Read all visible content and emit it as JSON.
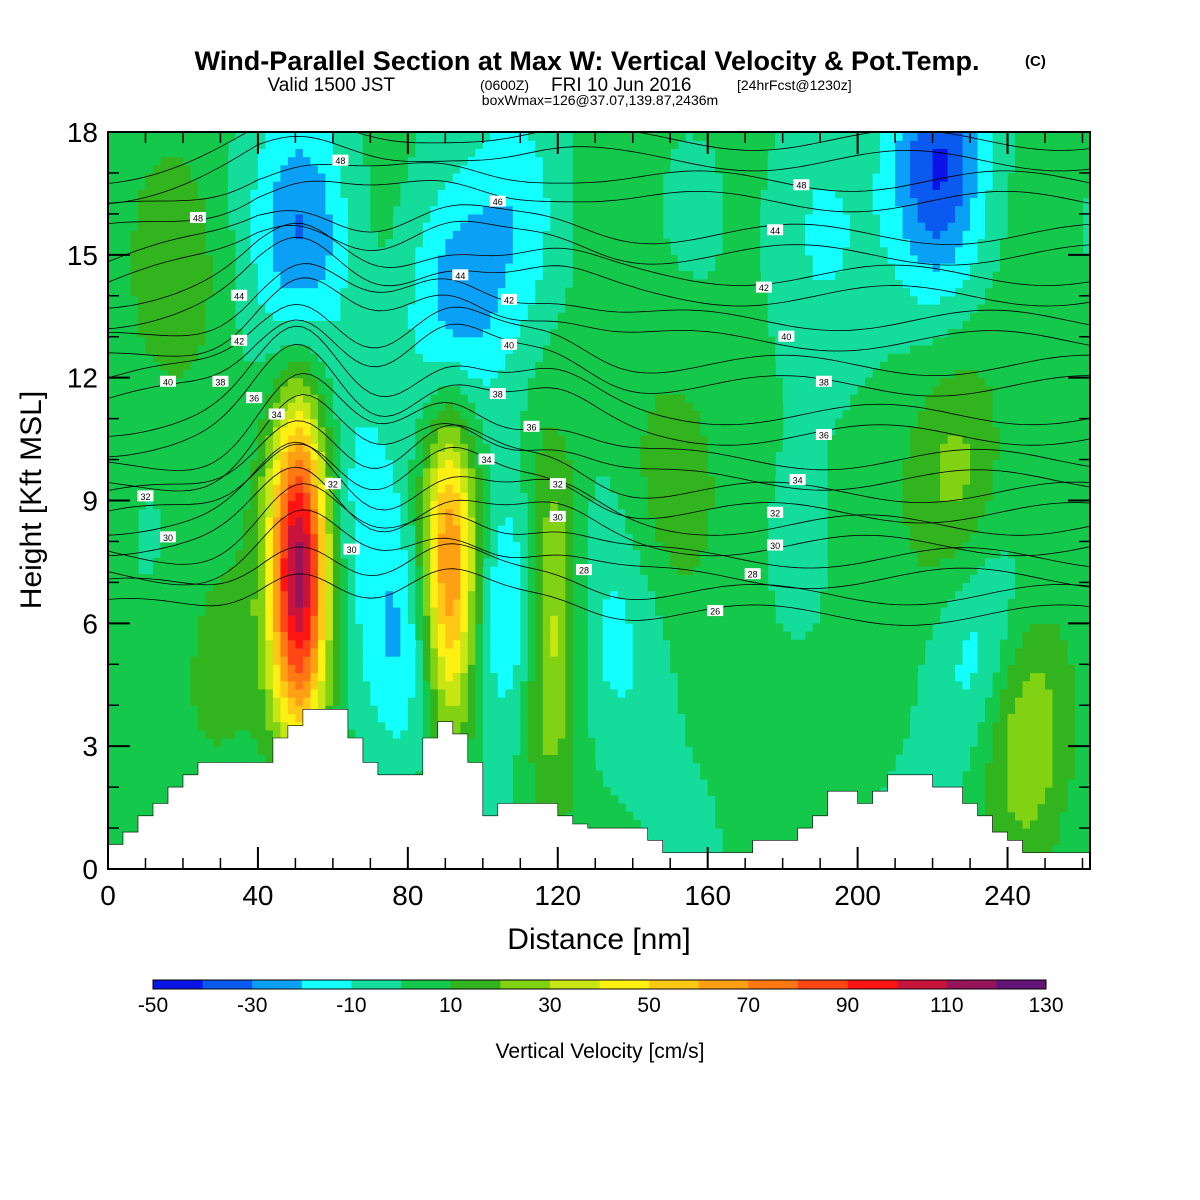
{
  "title": {
    "main": "Wind-Parallel Section at Max W: Vertical Velocity & Pot.Temp.",
    "copyright": "(C)",
    "valid_prefix": "Valid 1500 JST",
    "valid_utc": "(0600Z)",
    "valid_date": "FRI 10 Jun 2016",
    "forecast": "[24hrFcst@1230z]",
    "box": "boxWmax=126@37.07,139.87,2436m"
  },
  "chart_data": {
    "type": "heatmap",
    "xlabel": "Distance [nm]",
    "ylabel": "Height [Kft MSL]",
    "xlim": [
      0,
      262
    ],
    "ylim": [
      0,
      18
    ],
    "x_ticks": [
      0,
      40,
      80,
      120,
      160,
      200,
      240
    ],
    "y_ticks": [
      0,
      3,
      6,
      9,
      12,
      15,
      18
    ],
    "x_tick_labels": [
      "0",
      "40",
      "80",
      "120",
      "160",
      "200",
      "240"
    ],
    "y_tick_labels": [
      "0",
      "3",
      "6",
      "9",
      "12",
      "15",
      "18"
    ],
    "field": "Vertical Velocity [cm/s]",
    "colorbar": {
      "label": "Vertical Velocity [cm/s]",
      "levels": [
        -50,
        -40,
        -30,
        -20,
        -10,
        0,
        10,
        20,
        30,
        40,
        50,
        60,
        70,
        80,
        90,
        100,
        110,
        120,
        130
      ],
      "tick_labels": [
        "-50",
        "-30",
        "-10",
        "10",
        "30",
        "50",
        "70",
        "90",
        "110",
        "130"
      ],
      "colors": [
        "#0a14e6",
        "#0a5af0",
        "#0aa0f5",
        "#14ffff",
        "#14dc9a",
        "#14c84b",
        "#32b41e",
        "#82d214",
        "#c8e614",
        "#fff014",
        "#ffc814",
        "#ffa014",
        "#ff7814",
        "#ff4614",
        "#ff1414",
        "#c8143c",
        "#96145a",
        "#641478"
      ]
    },
    "background_w": 2,
    "updrafts": [
      {
        "x": 51,
        "z": 7.3,
        "peak_w": 112
      },
      {
        "x": 91,
        "z": 7.2,
        "peak_w": 76
      },
      {
        "x": 118,
        "z": 6.2,
        "peak_w": 48
      },
      {
        "x": 243,
        "z": 3.6,
        "peak_w": 36
      },
      {
        "x": 227,
        "z": 9.5,
        "peak_w": 22
      },
      {
        "x": 150,
        "z": 9.5,
        "peak_w": 13
      },
      {
        "x": 18,
        "z": 14.5,
        "peak_w": 14
      },
      {
        "x": 30,
        "z": 5.0,
        "peak_w": 12
      }
    ],
    "downdrafts": [
      {
        "x": 52,
        "z": 15.5,
        "peak_w": -32
      },
      {
        "x": 92,
        "z": 13.5,
        "peak_w": -28
      },
      {
        "x": 110,
        "z": 16.0,
        "peak_w": -18
      },
      {
        "x": 222,
        "z": 17.2,
        "peak_w": -42
      },
      {
        "x": 190,
        "z": 15.5,
        "peak_w": -16
      },
      {
        "x": 109,
        "z": 6.5,
        "peak_w": -30
      },
      {
        "x": 80,
        "z": 5.5,
        "peak_w": -24
      },
      {
        "x": 234,
        "z": 5.0,
        "peak_w": -28
      },
      {
        "x": 137,
        "z": 5.5,
        "peak_w": -14
      },
      {
        "x": 66,
        "z": 9.5,
        "peak_w": -12
      }
    ],
    "terrain": {
      "x": [
        0,
        4,
        8,
        12,
        16,
        20,
        24,
        28,
        32,
        36,
        40,
        44,
        48,
        52,
        56,
        60,
        64,
        68,
        72,
        76,
        80,
        84,
        88,
        92,
        96,
        100,
        104,
        108,
        112,
        116,
        120,
        124,
        128,
        132,
        136,
        140,
        144,
        148,
        152,
        156,
        160,
        164,
        168,
        172,
        176,
        180,
        184,
        188,
        192,
        196,
        200,
        204,
        208,
        212,
        216,
        220,
        224,
        228,
        232,
        236,
        240,
        244,
        248,
        252,
        256,
        262
      ],
      "height": [
        0.6,
        0.9,
        1.3,
        1.6,
        2.0,
        2.3,
        2.6,
        2.6,
        2.6,
        2.6,
        2.6,
        3.2,
        3.5,
        3.9,
        3.9,
        3.9,
        3.2,
        2.6,
        2.3,
        2.3,
        2.3,
        3.2,
        3.6,
        3.3,
        2.6,
        1.3,
        1.6,
        1.6,
        1.6,
        1.6,
        1.3,
        1.1,
        1.0,
        1.0,
        1.0,
        1.0,
        0.7,
        0.4,
        0.4,
        0.4,
        0.4,
        0.4,
        0.4,
        0.7,
        0.7,
        0.7,
        1.0,
        1.3,
        1.9,
        1.9,
        1.6,
        1.9,
        2.3,
        2.3,
        2.3,
        2.0,
        2.0,
        1.6,
        1.3,
        0.9,
        0.7,
        0.4,
        0.4,
        0.4,
        0.4,
        0.4
      ]
    },
    "theta_contours": {
      "levels": [
        26,
        28,
        30,
        32,
        34,
        36,
        38,
        40,
        42,
        44,
        46,
        48
      ],
      "labels": [
        "26",
        "28",
        "30",
        "32",
        "34",
        "36",
        "38",
        "40",
        "42",
        "44",
        "46",
        "48"
      ],
      "contour_label_positions_kft": [
        {
          "text": "48",
          "x": 62,
          "z": 17.3
        },
        {
          "text": "48",
          "x": 24,
          "z": 15.9
        },
        {
          "text": "48",
          "x": 185,
          "z": 16.7
        },
        {
          "text": "46",
          "x": 104,
          "z": 16.3
        },
        {
          "text": "44",
          "x": 35,
          "z": 14.0
        },
        {
          "text": "44",
          "x": 94,
          "z": 14.5
        },
        {
          "text": "44",
          "x": 178,
          "z": 15.6
        },
        {
          "text": "42",
          "x": 35,
          "z": 12.9
        },
        {
          "text": "42",
          "x": 107,
          "z": 13.9
        },
        {
          "text": "42",
          "x": 175,
          "z": 14.2
        },
        {
          "text": "40",
          "x": 16,
          "z": 11.9
        },
        {
          "text": "40",
          "x": 107,
          "z": 12.8
        },
        {
          "text": "40",
          "x": 181,
          "z": 13.0
        },
        {
          "text": "38",
          "x": 30,
          "z": 11.9
        },
        {
          "text": "38",
          "x": 104,
          "z": 11.6
        },
        {
          "text": "38",
          "x": 191,
          "z": 11.9
        },
        {
          "text": "36",
          "x": 39,
          "z": 11.5
        },
        {
          "text": "36",
          "x": 113,
          "z": 10.8
        },
        {
          "text": "36",
          "x": 191,
          "z": 10.6
        },
        {
          "text": "34",
          "x": 45,
          "z": 11.1
        },
        {
          "text": "34",
          "x": 101,
          "z": 10.0
        },
        {
          "text": "34",
          "x": 184,
          "z": 9.5
        },
        {
          "text": "32",
          "x": 10,
          "z": 9.1
        },
        {
          "text": "32",
          "x": 60,
          "z": 9.4
        },
        {
          "text": "32",
          "x": 120,
          "z": 9.4
        },
        {
          "text": "32",
          "x": 178,
          "z": 8.7
        },
        {
          "text": "30",
          "x": 16,
          "z": 8.1
        },
        {
          "text": "30",
          "x": 65,
          "z": 7.8
        },
        {
          "text": "30",
          "x": 120,
          "z": 8.6
        },
        {
          "text": "30",
          "x": 178,
          "z": 7.9
        },
        {
          "text": "28",
          "x": 127,
          "z": 7.3
        },
        {
          "text": "28",
          "x": 172,
          "z": 7.2
        },
        {
          "text": "26",
          "x": 162,
          "z": 6.3
        }
      ]
    }
  }
}
